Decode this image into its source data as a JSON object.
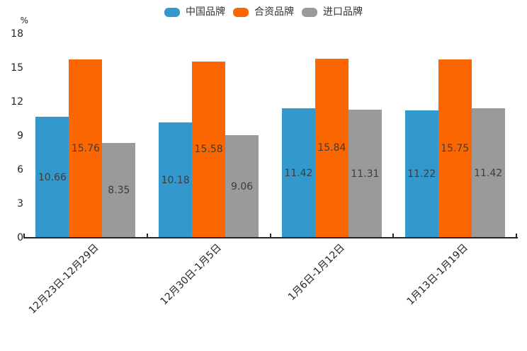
{
  "chart_data": {
    "type": "bar",
    "title": "",
    "xlabel": "",
    "ylabel": "%",
    "ylim": [
      0,
      18
    ],
    "yticks": [
      0,
      3,
      6,
      9,
      12,
      15,
      18
    ],
    "grid": false,
    "legend_position": "top-center",
    "value_labels": "inside-center",
    "categories": [
      "12月23日-12月29日",
      "12月30日-1月5日",
      "1月6日-1月12日",
      "1月13日-1月19日"
    ],
    "series": [
      {
        "name": "中国品牌",
        "color": "#3398cc",
        "values": [
          10.66,
          10.18,
          11.42,
          11.22
        ]
      },
      {
        "name": "合资品牌",
        "color": "#fc6600",
        "values": [
          15.76,
          15.58,
          15.84,
          15.75
        ]
      },
      {
        "name": "进口品牌",
        "color": "#9a9a9a",
        "values": [
          8.35,
          9.06,
          11.31,
          11.42
        ]
      }
    ]
  },
  "colors": {
    "background": "#ffffff",
    "axis": "#262626",
    "tick_label": "#262626",
    "value_label": "#3d3d3d"
  }
}
